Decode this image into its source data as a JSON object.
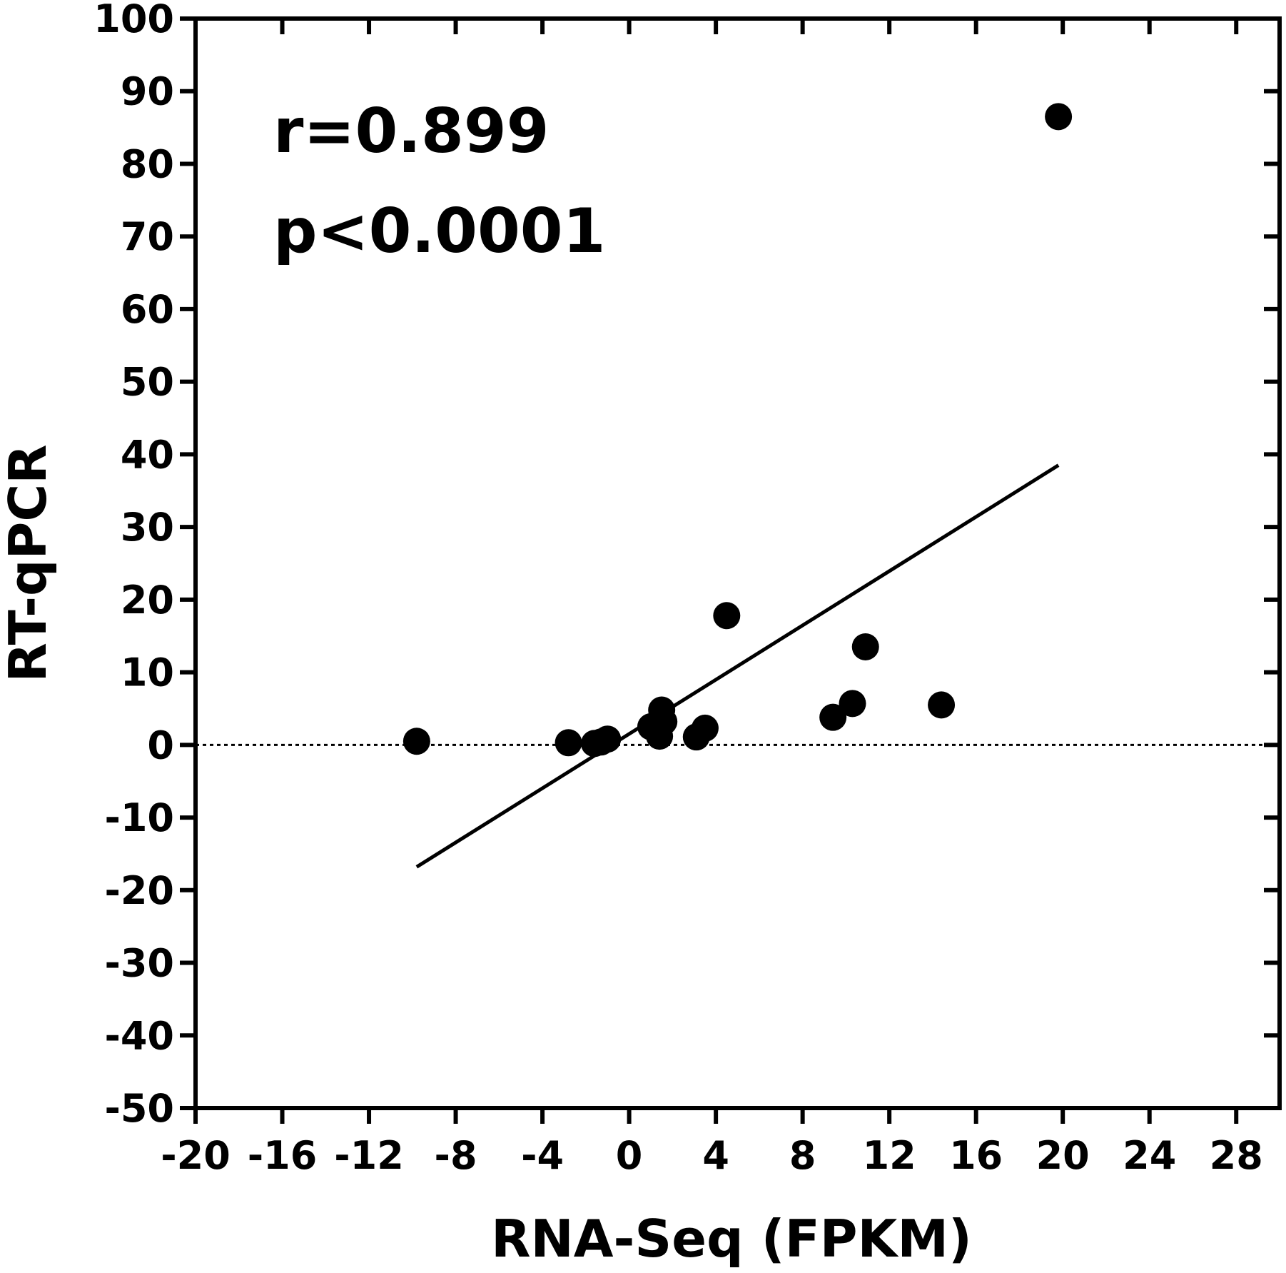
{
  "chart_data": {
    "type": "scatter",
    "title": "",
    "xlabel": "RNA-Seq (FPKM)",
    "ylabel": "RT-qPCR",
    "xlim": [
      -20,
      30
    ],
    "ylim": [
      -50,
      100
    ],
    "x_ticks": [
      -20,
      -16,
      -12,
      -8,
      -4,
      0,
      4,
      8,
      12,
      16,
      20,
      24,
      28
    ],
    "y_ticks": [
      -50,
      -40,
      -30,
      -20,
      -10,
      0,
      10,
      20,
      30,
      40,
      50,
      60,
      70,
      80,
      90,
      100
    ],
    "grid": false,
    "annotations": [
      "r=0.899",
      "p<0.0001"
    ],
    "reference_line": {
      "y": 0,
      "style": "dotted"
    },
    "fit_line": {
      "x": [
        -9.8,
        19.8
      ],
      "y": [
        -16.8,
        38.5
      ]
    },
    "points": [
      {
        "x": -9.8,
        "y": 0.5
      },
      {
        "x": -2.8,
        "y": 0.3
      },
      {
        "x": -1.6,
        "y": 0.2
      },
      {
        "x": -1.3,
        "y": 0.4
      },
      {
        "x": -1.0,
        "y": 0.8
      },
      {
        "x": 1.0,
        "y": 2.5
      },
      {
        "x": 1.3,
        "y": 2.0
      },
      {
        "x": 1.4,
        "y": 1.2
      },
      {
        "x": 1.5,
        "y": 4.8
      },
      {
        "x": 1.6,
        "y": 3.2
      },
      {
        "x": 3.1,
        "y": 1.1
      },
      {
        "x": 3.5,
        "y": 2.3
      },
      {
        "x": 4.5,
        "y": 17.8
      },
      {
        "x": 9.4,
        "y": 3.8
      },
      {
        "x": 10.3,
        "y": 5.7
      },
      {
        "x": 10.9,
        "y": 13.5
      },
      {
        "x": 14.4,
        "y": 5.5
      },
      {
        "x": 19.8,
        "y": 86.5
      }
    ]
  }
}
